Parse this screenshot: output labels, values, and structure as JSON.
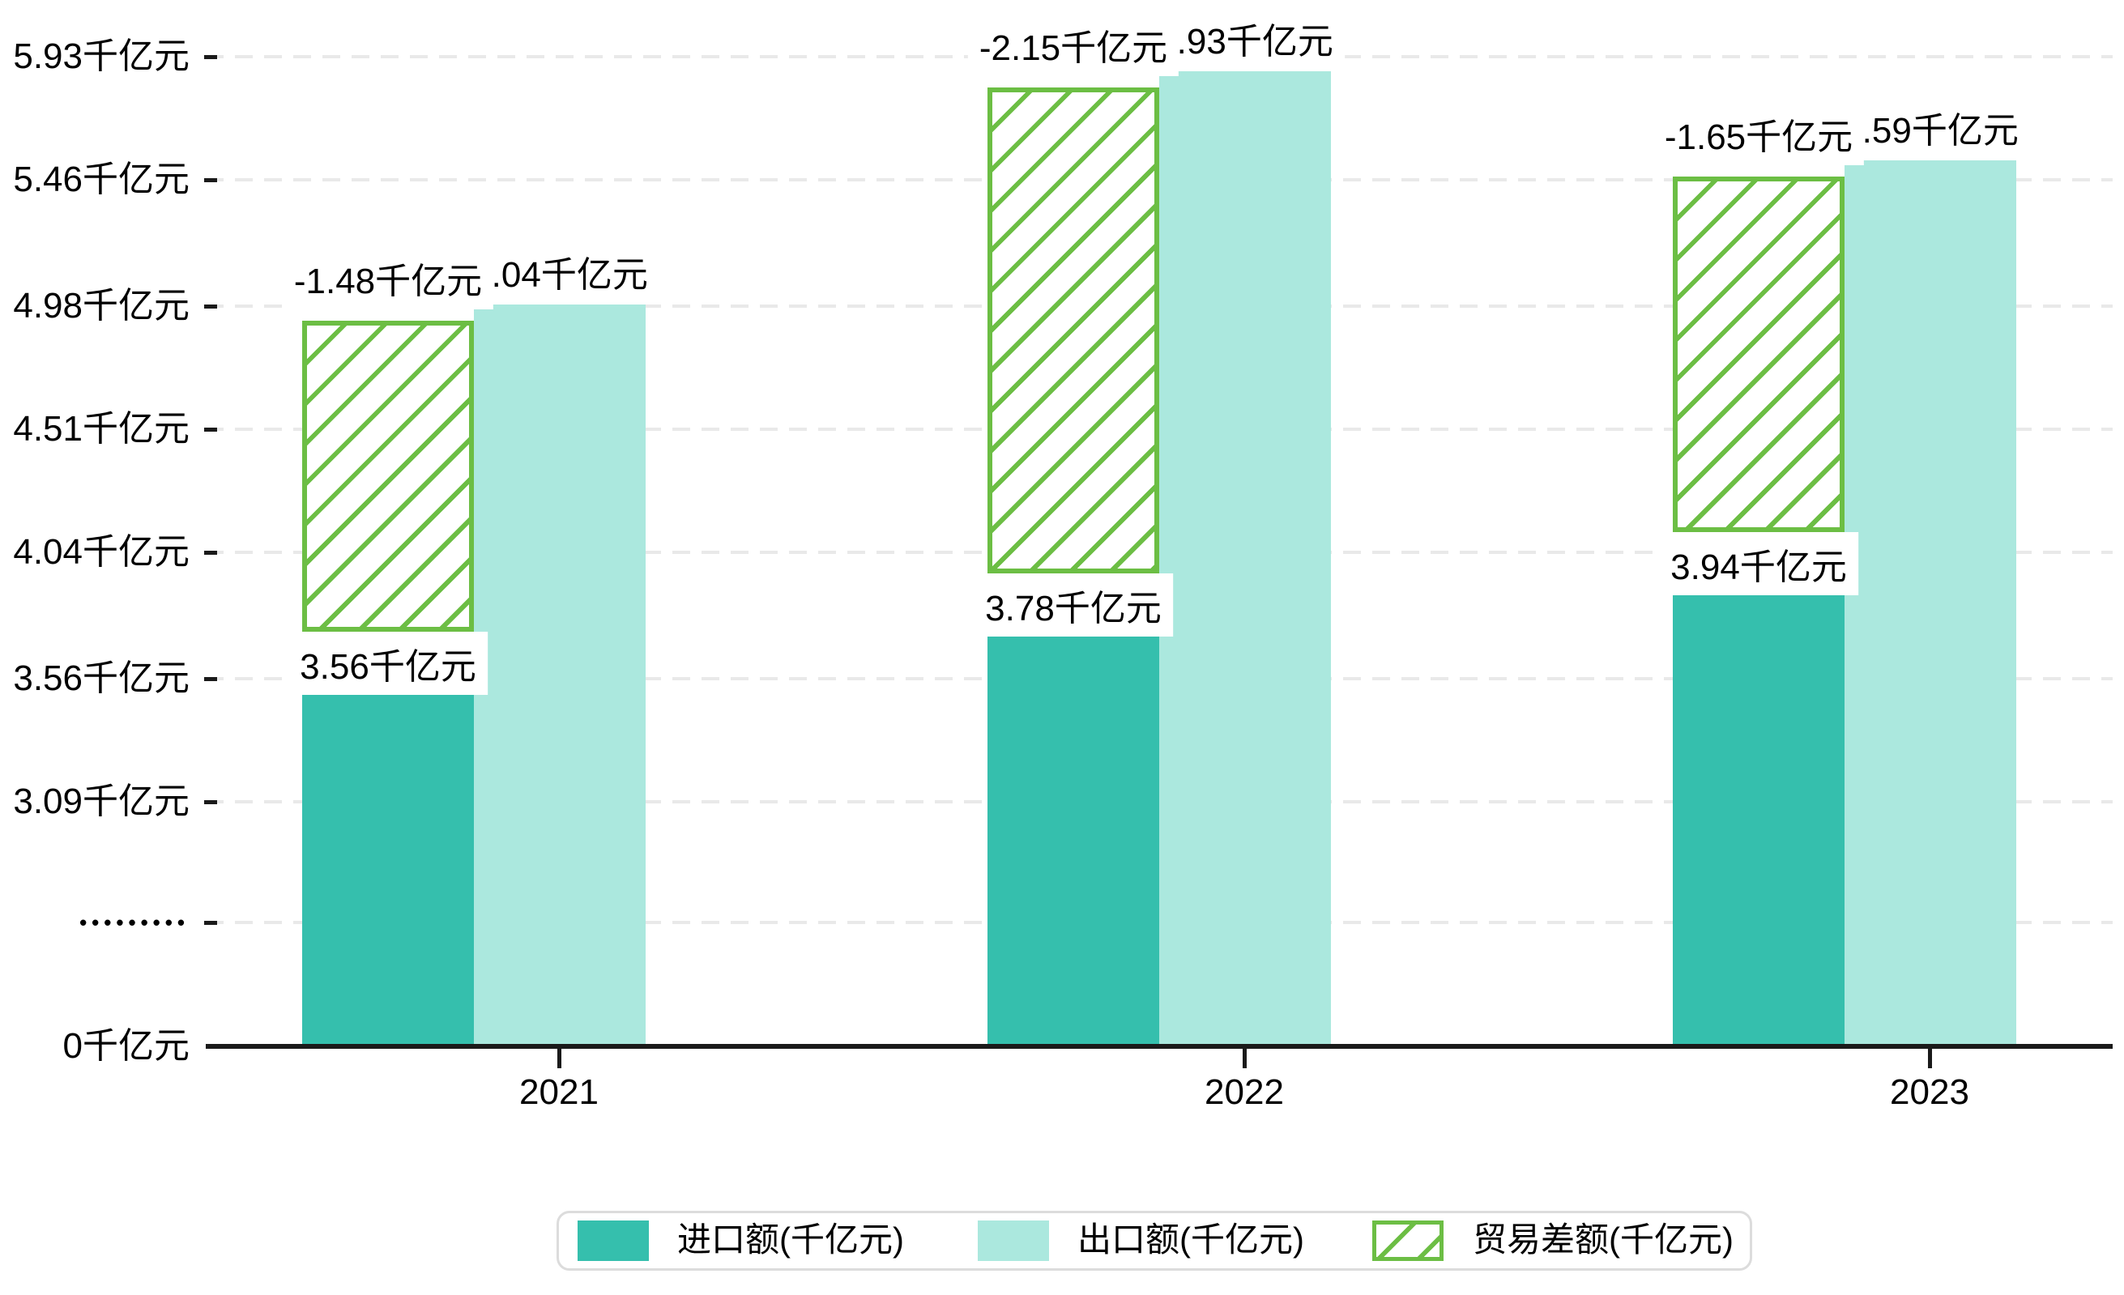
{
  "chart_data": {
    "type": "bar",
    "title": "",
    "unit": "千亿元",
    "categories": [
      "2021",
      "2022",
      "2023"
    ],
    "series": [
      {
        "name": "进口额(千亿元)",
        "key": "import",
        "style": "solid",
        "color": "#35bfad",
        "values": [
          3.56,
          3.78,
          3.94
        ],
        "labels": [
          "3.56千亿元",
          "3.78千亿元",
          "3.94千亿元"
        ]
      },
      {
        "name": "出口额(千亿元)",
        "key": "export",
        "style": "solid",
        "color": "#abe8de",
        "values": [
          5.04,
          5.93,
          5.59
        ],
        "labels": [
          "5.04千亿元",
          "5.93千亿元",
          "5.59千亿元"
        ]
      },
      {
        "name": "贸易差额(千亿元)",
        "key": "balance",
        "style": "hatched",
        "color": "#6cbe44",
        "values": [
          -1.48,
          -2.15,
          -1.65
        ],
        "labels": [
          "-1.48千亿元",
          "-2.15千亿元",
          "-1.65千亿元"
        ]
      }
    ],
    "y_axis": {
      "has_break": true,
      "ticks": [
        {
          "label": "5.93千亿元",
          "value": 5.93
        },
        {
          "label": "5.46千亿元",
          "value": 5.46
        },
        {
          "label": "4.98千亿元",
          "value": 4.98
        },
        {
          "label": "4.51千亿元",
          "value": 4.51
        },
        {
          "label": "4.04千亿元",
          "value": 4.04
        },
        {
          "label": "3.56千亿元",
          "value": 3.56
        },
        {
          "label": "3.09千亿元",
          "value": 3.09
        },
        {
          "label": "•••••••••",
          "value": null,
          "break": true
        },
        {
          "label": "0千亿元",
          "value": 0
        }
      ]
    },
    "x_axis": {
      "labels": [
        "2021",
        "2022",
        "2023"
      ]
    },
    "grid": "dashed-horizontal",
    "legend": {
      "position": "bottom",
      "items": [
        "进口额(千亿元)",
        "出口额(千亿元)",
        "贸易差额(千亿元)"
      ]
    }
  },
  "colors": {
    "import": "#35bfad",
    "export": "#abe8de",
    "balance": "#6cbe44",
    "grid": "#e9e9e9",
    "axis": "#1a1a1a",
    "text": "#000000",
    "label_bg": "#ffffff",
    "legend_border": "#dcdcdc"
  }
}
